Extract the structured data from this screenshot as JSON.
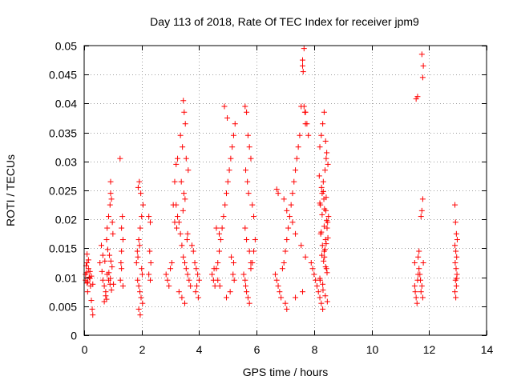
{
  "chart_data": {
    "type": "scatter",
    "title": "Day 113 of 2018, Rate Of TEC Index for receiver jpm9",
    "xlabel": "GPS time / hours",
    "ylabel": "ROTI / TECUs",
    "xlim": [
      0,
      14
    ],
    "ylim": [
      0,
      0.05
    ],
    "x_ticks": [
      "0",
      "2",
      "4",
      "6",
      "8",
      "10",
      "12",
      "14"
    ],
    "y_ticks": [
      "0",
      "0.005",
      "0.01",
      "0.015",
      "0.02",
      "0.025",
      "0.03",
      "0.035",
      "0.04",
      "0.045",
      "0.05"
    ],
    "grid": true,
    "marker": "+",
    "color": "#ff0000",
    "series": [
      {
        "name": "ROTI",
        "x": [
          0.05,
          0.05,
          0.07,
          0.1,
          0.12,
          0.15,
          0.18,
          0.1,
          0.2,
          0.22,
          0.25,
          0.28,
          0.3,
          0.15,
          0.1,
          0.2,
          0.08,
          0.12,
          0.25,
          0.3,
          0.55,
          0.6,
          0.62,
          0.65,
          0.7,
          0.75,
          0.78,
          0.8,
          0.85,
          0.9,
          0.92,
          0.95,
          0.98,
          1.0,
          0.8,
          0.85,
          0.9,
          0.95,
          0.75,
          0.7,
          0.82,
          0.88,
          0.93,
          0.97,
          1.02,
          0.65,
          0.72,
          0.86,
          0.91,
          0.78,
          0.92,
          1.25,
          1.3,
          1.35,
          1.3,
          1.28,
          1.33,
          1.3,
          1.26,
          1.35,
          1.82,
          1.85,
          1.9,
          1.95,
          2.0,
          2.05,
          1.88,
          1.92,
          1.97,
          2.02,
          1.86,
          1.9,
          1.94,
          1.98,
          2.03,
          1.9,
          1.95,
          2.0,
          1.87,
          1.93,
          2.25,
          2.3,
          2.28,
          2.32,
          2.25,
          2.3,
          2.85,
          2.9,
          2.95,
          3.0,
          3.05,
          3.1,
          3.15,
          3.2,
          3.25,
          3.3,
          3.35,
          3.4,
          3.45,
          3.5,
          3.55,
          3.6,
          3.65,
          3.7,
          3.3,
          3.4,
          3.5,
          3.45,
          3.48,
          3.52,
          3.35,
          3.42,
          3.55,
          3.62,
          3.38,
          3.47,
          3.2,
          3.25,
          3.15,
          3.6,
          3.75,
          3.8,
          3.58,
          3.22,
          3.44,
          3.51,
          3.85,
          3.9,
          3.95,
          4.0,
          3.92,
          3.88,
          3.97,
          4.45,
          4.5,
          4.55,
          4.6,
          4.65,
          4.7,
          4.75,
          4.8,
          4.85,
          4.9,
          4.95,
          5.0,
          5.05,
          5.1,
          5.15,
          5.2,
          5.25,
          4.6,
          4.7,
          4.52,
          4.65,
          4.88,
          4.98,
          5.18,
          5.22,
          4.72,
          5.08,
          4.95,
          5.2,
          5.12,
          5.55,
          5.6,
          5.62,
          5.65,
          5.7,
          5.75,
          5.8,
          5.85,
          5.9,
          5.95,
          5.6,
          5.65,
          5.7,
          5.75,
          5.8,
          5.62,
          5.68,
          5.72,
          5.85,
          5.9,
          5.6,
          5.65,
          5.75,
          5.8,
          6.65,
          6.7,
          6.75,
          6.8,
          6.85,
          6.9,
          6.95,
          7.0,
          7.05,
          7.1,
          7.15,
          7.2,
          7.25,
          7.3,
          7.35,
          7.4,
          7.45,
          7.5,
          7.55,
          7.6,
          7.65,
          7.7,
          7.75,
          7.8,
          6.7,
          6.75,
          6.95,
          7.05,
          7.25,
          7.35,
          7.55,
          7.7,
          7.0,
          7.05,
          7.35,
          7.6,
          7.6,
          7.62,
          7.65,
          7.68,
          7.7,
          7.9,
          7.95,
          8.0,
          8.05,
          8.1,
          8.15,
          8.2,
          8.25,
          8.3,
          8.35,
          8.4,
          8.45,
          8.5,
          8.22,
          8.28,
          8.32,
          8.38,
          8.42,
          8.2,
          8.25,
          8.3,
          8.35,
          8.4,
          8.44,
          8.48,
          8.18,
          8.26,
          8.34,
          8.41,
          8.47,
          8.23,
          8.29,
          8.36,
          8.43,
          8.21,
          8.31,
          8.39,
          8.46,
          8.27,
          8.33,
          8.4,
          8.45,
          8.2,
          8.3,
          8.38,
          8.42,
          8.48,
          8.25,
          8.35,
          8.44,
          8.28,
          8.36,
          8.2,
          8.42,
          8.32,
          11.5,
          11.52,
          11.55,
          11.58,
          11.6,
          11.62,
          11.65,
          11.5,
          11.55,
          11.6,
          11.62,
          11.65,
          11.68,
          11.7,
          11.72,
          11.75,
          11.78,
          11.8,
          11.72,
          11.75,
          11.78,
          11.75,
          11.8,
          11.78,
          12.9,
          12.92,
          12.95,
          12.98,
          12.9,
          12.93,
          12.96,
          12.91,
          12.94,
          12.97,
          12.92,
          12.95,
          12.9,
          12.93,
          12.96
        ],
        "y": [
          0.0095,
          0.0105,
          0.012,
          0.009,
          0.0075,
          0.013,
          0.01,
          0.014,
          0.011,
          0.0085,
          0.006,
          0.0045,
          0.0035,
          0.0115,
          0.0125,
          0.0098,
          0.0108,
          0.0092,
          0.0102,
          0.0088,
          0.0125,
          0.0155,
          0.011,
          0.0095,
          0.0085,
          0.0075,
          0.0165,
          0.0185,
          0.0205,
          0.0225,
          0.0245,
          0.0235,
          0.0195,
          0.0175,
          0.0105,
          0.0095,
          0.0088,
          0.0078,
          0.0068,
          0.0058,
          0.0148,
          0.0138,
          0.0128,
          0.0118,
          0.0088,
          0.0138,
          0.0128,
          0.0108,
          0.0098,
          0.0062,
          0.0265,
          0.0305,
          0.0185,
          0.0165,
          0.0145,
          0.0125,
          0.0205,
          0.0115,
          0.0095,
          0.0085,
          0.0125,
          0.0145,
          0.0165,
          0.0185,
          0.0205,
          0.0225,
          0.0255,
          0.0265,
          0.0245,
          0.0105,
          0.0095,
          0.0085,
          0.0075,
          0.0065,
          0.0055,
          0.0045,
          0.0035,
          0.0115,
          0.0135,
          0.0155,
          0.0205,
          0.0195,
          0.0145,
          0.0125,
          0.0105,
          0.0095,
          0.0105,
          0.0095,
          0.0085,
          0.0115,
          0.0125,
          0.0225,
          0.0265,
          0.0295,
          0.0305,
          0.0195,
          0.0175,
          0.0155,
          0.0135,
          0.0125,
          0.0115,
          0.0105,
          0.0095,
          0.0085,
          0.0075,
          0.0065,
          0.0055,
          0.0405,
          0.0385,
          0.0365,
          0.0345,
          0.0325,
          0.0305,
          0.0285,
          0.0265,
          0.0245,
          0.0225,
          0.0205,
          0.0195,
          0.0175,
          0.0155,
          0.0145,
          0.0165,
          0.0185,
          0.0215,
          0.0235,
          0.0125,
          0.0115,
          0.0105,
          0.0095,
          0.0085,
          0.0075,
          0.0065,
          0.0105,
          0.0095,
          0.0085,
          0.0115,
          0.0125,
          0.0145,
          0.0165,
          0.0185,
          0.0205,
          0.0225,
          0.0245,
          0.0265,
          0.0285,
          0.0305,
          0.0325,
          0.0345,
          0.0365,
          0.0185,
          0.0175,
          0.0115,
          0.0095,
          0.0395,
          0.0375,
          0.0105,
          0.0095,
          0.0085,
          0.0075,
          0.0065,
          0.0125,
          0.0135,
          0.0105,
          0.0095,
          0.0085,
          0.0075,
          0.0065,
          0.0055,
          0.0115,
          0.0125,
          0.0145,
          0.0165,
          0.0395,
          0.0385,
          0.0345,
          0.0325,
          0.0305,
          0.0285,
          0.0265,
          0.0245,
          0.0225,
          0.0205,
          0.0185,
          0.0165,
          0.0145,
          0.0125,
          0.0105,
          0.0095,
          0.0085,
          0.0075,
          0.0065,
          0.0115,
          0.0125,
          0.0145,
          0.0165,
          0.0185,
          0.0205,
          0.0225,
          0.0245,
          0.0265,
          0.0285,
          0.0305,
          0.0325,
          0.0345,
          0.0395,
          0.0465,
          0.0495,
          0.0385,
          0.0365,
          0.0345,
          0.0252,
          0.0245,
          0.0235,
          0.0215,
          0.0195,
          0.0175,
          0.0155,
          0.0135,
          0.0055,
          0.0045,
          0.0065,
          0.0075,
          0.0475,
          0.0455,
          0.0395,
          0.0385,
          0.0365,
          0.0125,
          0.0115,
          0.0105,
          0.0095,
          0.0085,
          0.0075,
          0.0065,
          0.0055,
          0.0045,
          0.0145,
          0.0165,
          0.0185,
          0.0205,
          0.0225,
          0.0245,
          0.0265,
          0.0285,
          0.0305,
          0.0325,
          0.0345,
          0.0365,
          0.0385,
          0.0335,
          0.0315,
          0.0295,
          0.0275,
          0.0255,
          0.0235,
          0.0215,
          0.0195,
          0.0175,
          0.0155,
          0.0135,
          0.0115,
          0.0095,
          0.0078,
          0.0068,
          0.0058,
          0.0138,
          0.0128,
          0.0118,
          0.0108,
          0.0098,
          0.0088,
          0.0148,
          0.0158,
          0.0168,
          0.0178,
          0.0188,
          0.0198,
          0.0208,
          0.0218,
          0.0228,
          0.0238,
          0.0248,
          0.0085,
          0.0075,
          0.0065,
          0.0055,
          0.0095,
          0.0105,
          0.0115,
          0.0125,
          0.0408,
          0.0412,
          0.0135,
          0.0145,
          0.0105,
          0.0095,
          0.0075,
          0.0085,
          0.0065,
          0.0125,
          0.0205,
          0.0215,
          0.0235,
          0.0485,
          0.0465,
          0.0445,
          0.0225,
          0.0195,
          0.0175,
          0.0165,
          0.0155,
          0.0145,
          0.0135,
          0.0125,
          0.0115,
          0.0105,
          0.0095,
          0.0085,
          0.0075,
          0.0065,
          0.0098
        ]
      }
    ]
  }
}
